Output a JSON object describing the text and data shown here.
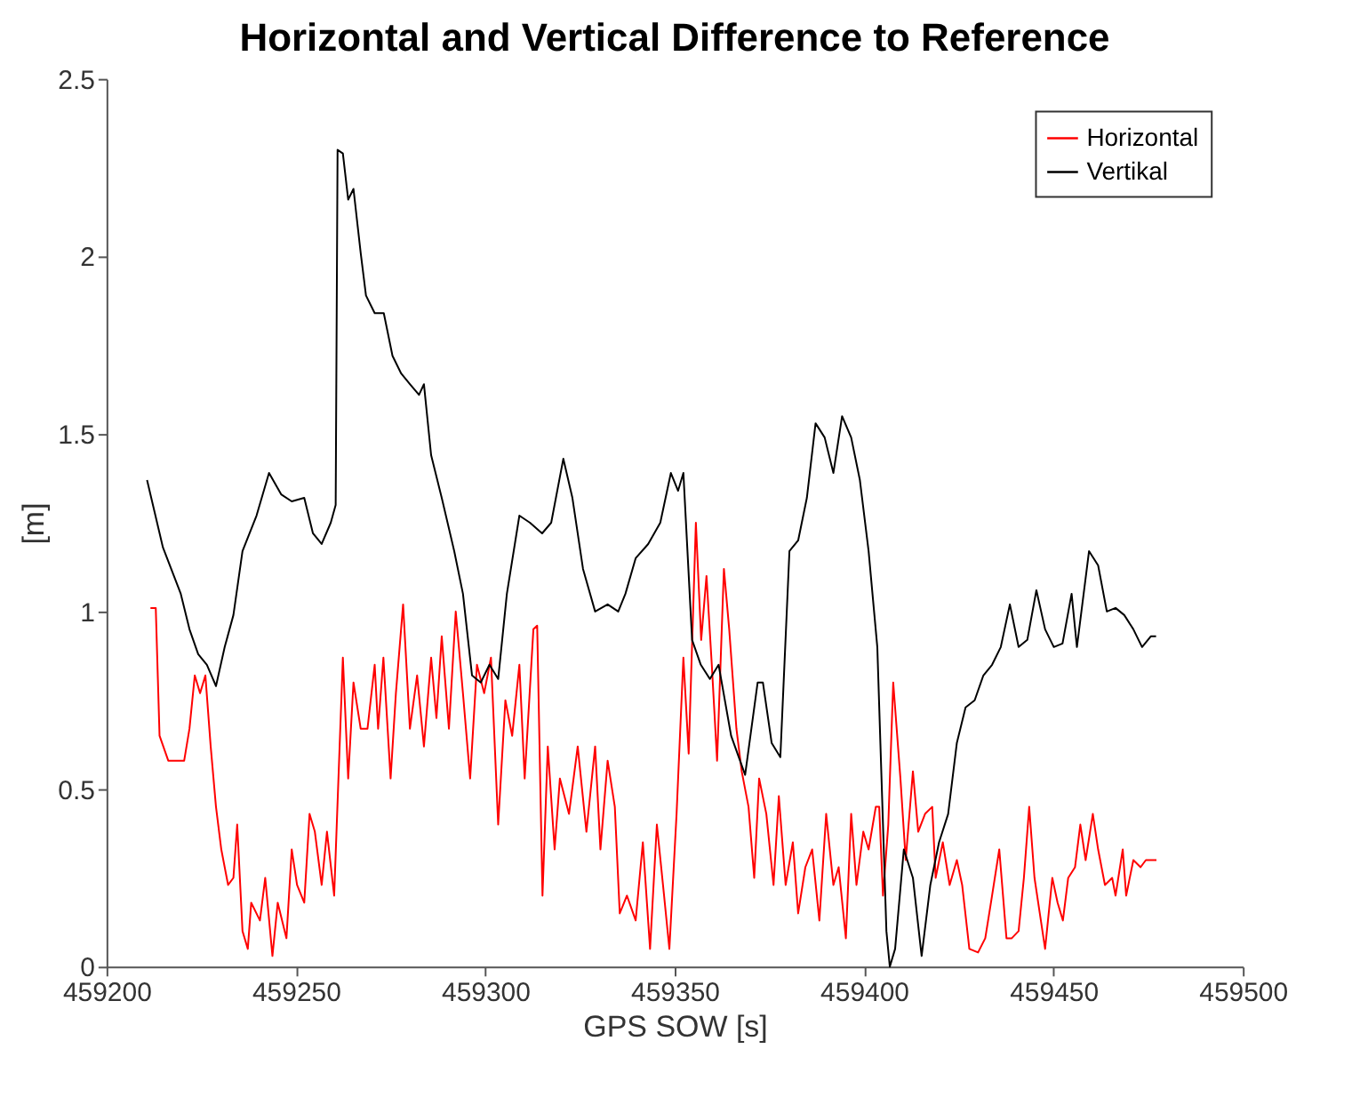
{
  "chart_data": {
    "type": "line",
    "title": "Horizontal and Vertical Difference to Reference",
    "xlabel": "GPS SOW [s]",
    "ylabel": "[m]",
    "xlim": [
      459200,
      459500
    ],
    "xticks": [
      459200,
      459250,
      459300,
      459350,
      459400,
      459450,
      459500
    ],
    "ylim": [
      0,
      2.5
    ],
    "yticks": [
      0,
      0.5,
      1,
      1.5,
      2,
      2.5
    ],
    "grid": false,
    "legend": "top right",
    "line_style": "solid",
    "marker": "none",
    "series": [
      {
        "name": "Horizontal",
        "color": "#ff0000",
        "x": [
          459211.6,
          459213.0,
          459214.0,
          459216.3,
          459220.5,
          459221.9,
          459223.3,
          459224.7,
          459226.1,
          459227.5,
          459228.9,
          459230.3,
          459232.1,
          459233.5,
          459234.5,
          459235.9,
          459237.3,
          459238.2,
          459240.5,
          459241.9,
          459243.8,
          459245.2,
          459247.5,
          459248.9,
          459250.3,
          459252.2,
          459253.6,
          459255.0,
          459256.8,
          459258.2,
          459260.1,
          459262.4,
          459263.8,
          459265.2,
          459267.1,
          459268.9,
          459270.8,
          459271.7,
          459273.1,
          459275.0,
          459276.4,
          459278.3,
          459280.1,
          459282.0,
          459283.8,
          459285.7,
          459287.1,
          459288.5,
          459290.4,
          459292.2,
          459294.1,
          459296.0,
          459297.8,
          459299.7,
          459301.5,
          459303.4,
          459305.3,
          459307.1,
          459309.0,
          459310.4,
          459312.7,
          459313.7,
          459315.1,
          459316.5,
          459318.3,
          459319.7,
          459322.1,
          459324.4,
          459326.7,
          459329.0,
          459330.4,
          459332.3,
          459334.2,
          459335.5,
          459337.4,
          459339.7,
          459341.6,
          459343.5,
          459345.3,
          459347.2,
          459348.6,
          459350.5,
          459352.3,
          459353.7,
          459355.6,
          459357.0,
          459358.4,
          459359.8,
          459361.2,
          459363.0,
          459364.4,
          459366.3,
          459367.7,
          459369.5,
          459371.0,
          459372.3,
          459374.2,
          459376.1,
          459377.5,
          459379.3,
          459381.2,
          459382.6,
          459384.5,
          459386.3,
          459388.2,
          459390.0,
          459391.9,
          459393.3,
          459395.2,
          459396.6,
          459398.0,
          459399.8,
          459401.2,
          459403.1,
          459404.0,
          459405.0,
          459406.4,
          459407.7,
          459409.6,
          459411.0,
          459412.9,
          459414.3,
          459416.1,
          459418.0,
          459418.9,
          459420.8,
          459422.6,
          459424.5,
          459425.9,
          459427.8,
          459430.1,
          459432.0,
          459433.8,
          459435.7,
          459437.6,
          459439.0,
          459440.8,
          459442.2,
          459443.6,
          459445.0,
          459446.4,
          459447.8,
          459449.7,
          459451.1,
          459452.5,
          459453.9,
          459455.7,
          459457.1,
          459458.5,
          459460.4,
          459461.8,
          459463.6,
          459465.5,
          459466.4,
          459468.3,
          459469.2,
          459471.1,
          459473.0,
          459474.4,
          459477.2
        ],
        "values": [
          1.01,
          1.01,
          0.65,
          0.58,
          0.58,
          0.67,
          0.82,
          0.77,
          0.82,
          0.62,
          0.45,
          0.33,
          0.23,
          0.25,
          0.4,
          0.1,
          0.05,
          0.18,
          0.13,
          0.25,
          0.03,
          0.18,
          0.08,
          0.33,
          0.23,
          0.18,
          0.43,
          0.38,
          0.23,
          0.38,
          0.2,
          0.87,
          0.53,
          0.8,
          0.67,
          0.67,
          0.85,
          0.67,
          0.87,
          0.53,
          0.77,
          1.02,
          0.67,
          0.82,
          0.62,
          0.87,
          0.7,
          0.93,
          0.67,
          1.0,
          0.77,
          0.53,
          0.85,
          0.77,
          0.87,
          0.4,
          0.75,
          0.65,
          0.85,
          0.53,
          0.95,
          0.96,
          0.2,
          0.62,
          0.33,
          0.53,
          0.43,
          0.62,
          0.38,
          0.62,
          0.33,
          0.58,
          0.45,
          0.15,
          0.2,
          0.13,
          0.35,
          0.05,
          0.4,
          0.2,
          0.05,
          0.43,
          0.87,
          0.6,
          1.25,
          0.92,
          1.1,
          0.85,
          0.58,
          1.12,
          0.95,
          0.67,
          0.55,
          0.45,
          0.25,
          0.53,
          0.43,
          0.23,
          0.48,
          0.23,
          0.35,
          0.15,
          0.28,
          0.33,
          0.13,
          0.43,
          0.23,
          0.28,
          0.08,
          0.43,
          0.23,
          0.38,
          0.33,
          0.45,
          0.45,
          0.2,
          0.4,
          0.8,
          0.53,
          0.3,
          0.55,
          0.38,
          0.43,
          0.45,
          0.25,
          0.35,
          0.23,
          0.3,
          0.23,
          0.05,
          0.04,
          0.08,
          0.2,
          0.33,
          0.08,
          0.08,
          0.1,
          0.25,
          0.45,
          0.25,
          0.15,
          0.05,
          0.25,
          0.18,
          0.13,
          0.25,
          0.28,
          0.4,
          0.3,
          0.43,
          0.33,
          0.23,
          0.25,
          0.2,
          0.33,
          0.2,
          0.3,
          0.28,
          0.3,
          0.3
        ]
      },
      {
        "name": "Vertikal",
        "color": "#000000",
        "x": [
          459210.7,
          459214.9,
          459219.6,
          459221.9,
          459224.2,
          459226.5,
          459228.9,
          459231.2,
          459233.5,
          459235.9,
          459239.6,
          459242.9,
          459246.1,
          459248.9,
          459252.2,
          459254.5,
          459256.8,
          459259.2,
          459260.5,
          459261.0,
          459262.4,
          459263.8,
          459265.2,
          459267.1,
          459268.5,
          459270.8,
          459273.2,
          459275.5,
          459277.8,
          459280.1,
          459282.5,
          459283.8,
          459285.7,
          459288.5,
          459291.8,
          459294.1,
          459296.5,
          459298.8,
          459301.1,
          459303.4,
          459305.7,
          459309.0,
          459311.8,
          459315.0,
          459317.4,
          459320.6,
          459323.0,
          459325.8,
          459329.0,
          459332.3,
          459335.1,
          459337.0,
          459339.7,
          459343.0,
          459346.2,
          459349.0,
          459350.9,
          459352.3,
          459354.6,
          459356.9,
          459359.3,
          459361.6,
          459364.9,
          459368.6,
          459371.9,
          459373.3,
          459375.6,
          459377.9,
          459380.3,
          459382.6,
          459384.9,
          459387.2,
          459389.6,
          459391.9,
          459394.2,
          459396.6,
          459398.9,
          459401.2,
          459403.5,
          459405.9,
          459406.8,
          459408.2,
          459410.5,
          459412.9,
          459415.2,
          459417.5,
          459419.8,
          459422.2,
          459424.5,
          459426.8,
          459429.2,
          459431.5,
          459433.8,
          459436.1,
          459438.5,
          459440.8,
          459443.1,
          459445.5,
          459447.8,
          459450.1,
          459452.4,
          459454.8,
          459456.2,
          459459.4,
          459461.8,
          459464.1,
          459466.4,
          459468.7,
          459471.1,
          459473.4,
          459475.7,
          459477.1
        ],
        "values": [
          1.37,
          1.18,
          1.05,
          0.95,
          0.88,
          0.85,
          0.79,
          0.9,
          0.99,
          1.17,
          1.27,
          1.39,
          1.33,
          1.31,
          1.32,
          1.22,
          1.19,
          1.25,
          1.3,
          2.3,
          2.29,
          2.16,
          2.19,
          2.01,
          1.89,
          1.84,
          1.84,
          1.72,
          1.67,
          1.64,
          1.61,
          1.64,
          1.44,
          1.32,
          1.17,
          1.05,
          0.82,
          0.8,
          0.85,
          0.81,
          1.05,
          1.27,
          1.25,
          1.22,
          1.25,
          1.43,
          1.32,
          1.12,
          1.0,
          1.02,
          1.0,
          1.05,
          1.15,
          1.19,
          1.25,
          1.39,
          1.34,
          1.39,
          0.92,
          0.85,
          0.81,
          0.85,
          0.65,
          0.54,
          0.8,
          0.8,
          0.63,
          0.59,
          1.17,
          1.2,
          1.32,
          1.53,
          1.49,
          1.39,
          1.55,
          1.49,
          1.37,
          1.17,
          0.9,
          0.1,
          0.0,
          0.05,
          0.33,
          0.25,
          0.03,
          0.23,
          0.35,
          0.43,
          0.63,
          0.73,
          0.75,
          0.82,
          0.85,
          0.9,
          1.02,
          0.9,
          0.92,
          1.06,
          0.95,
          0.9,
          0.91,
          1.05,
          0.9,
          1.17,
          1.13,
          1.0,
          1.01,
          0.99,
          0.95,
          0.9,
          0.93,
          0.93
        ]
      }
    ]
  }
}
